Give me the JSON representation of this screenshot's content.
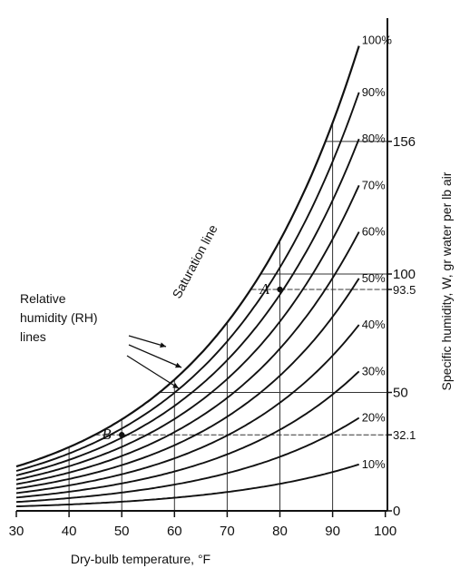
{
  "chart_data": {
    "type": "line",
    "title": "",
    "xlabel": "Dry-bulb temperature, °F",
    "ylabel": "Specific humidity, W, gr water per lb air",
    "xlim": [
      30,
      100
    ],
    "ylim": [
      0,
      210
    ],
    "x_ticks": [
      30,
      40,
      50,
      60,
      70,
      80,
      90,
      100
    ],
    "x_tick_labels": [
      "30",
      "40",
      "50",
      "60",
      "70",
      "80",
      "90",
      "100"
    ],
    "right_axis_ticks": [
      {
        "value": 0,
        "label": "0"
      },
      {
        "value": 32.1,
        "label": "32.1"
      },
      {
        "value": 50,
        "label": "50"
      },
      {
        "value": 93.5,
        "label": "93.5"
      },
      {
        "value": 100,
        "label": "100"
      },
      {
        "value": 156,
        "label": "156"
      }
    ],
    "saturation_label": "Saturation line",
    "rh_annotation": [
      "Relative",
      "humidity (RH)",
      "lines"
    ],
    "series": [
      {
        "name": "100%",
        "rh": 100
      },
      {
        "name": "90%",
        "rh": 90
      },
      {
        "name": "80%",
        "rh": 80
      },
      {
        "name": "70%",
        "rh": 70
      },
      {
        "name": "60%",
        "rh": 60
      },
      {
        "name": "50%",
        "rh": 50
      },
      {
        "name": "40%",
        "rh": 40
      },
      {
        "name": "30%",
        "rh": 30
      },
      {
        "name": "20%",
        "rh": 20
      },
      {
        "name": "10%",
        "rh": 10
      }
    ],
    "points": [
      {
        "name": "A",
        "x": 80,
        "y": 93.5
      },
      {
        "name": "B",
        "x": 50,
        "y": 32.1
      }
    ],
    "grid": "partial"
  }
}
